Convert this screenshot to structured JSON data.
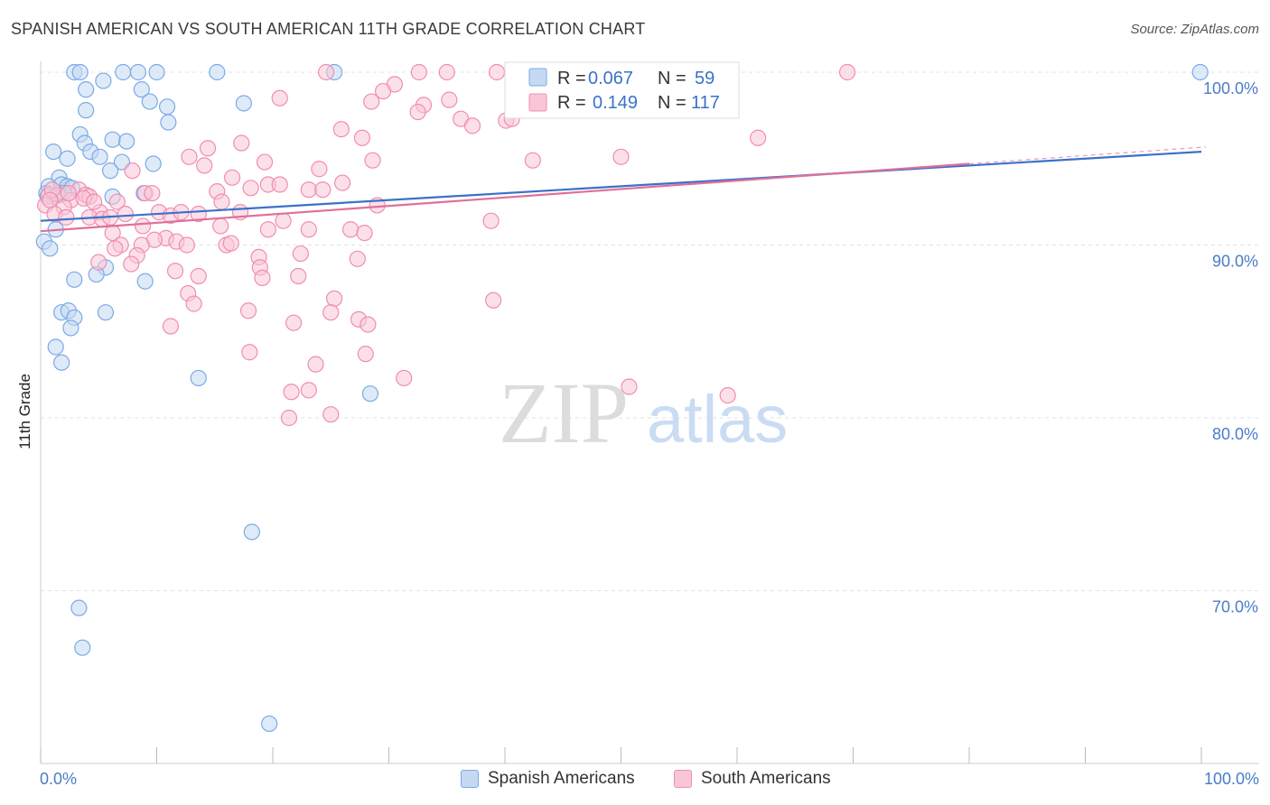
{
  "chart_data": {
    "type": "scatter",
    "title": "SPANISH AMERICAN VS SOUTH AMERICAN 11TH GRADE CORRELATION CHART",
    "source": "Source: ZipAtlas.com",
    "ylabel": "11th Grade",
    "xlabel": "",
    "xlim": [
      0,
      100
    ],
    "ylim": [
      61,
      101
    ],
    "x_tick_labels": {
      "left": "0.0%",
      "right": "100.0%"
    },
    "y_ticks": [
      {
        "value": 100,
        "label": "100.0%"
      },
      {
        "value": 90,
        "label": "90.0%"
      },
      {
        "value": 80,
        "label": "80.0%"
      },
      {
        "value": 70,
        "label": "70.0%"
      }
    ],
    "watermark": {
      "zip": "ZIP",
      "atlas": "atlas"
    },
    "stats": [
      {
        "r_label": "R =",
        "r_value": "0.067",
        "n_label": "N =",
        "n_value": "59"
      },
      {
        "r_label": "R =",
        "r_value": "0.149",
        "n_label": "N =",
        "n_value": "117"
      }
    ],
    "series": [
      {
        "name": "Spanish Americans",
        "color": "#7aaae6",
        "fill": "#c5d9f3",
        "line_color": "#3a72c9",
        "trend": {
          "x0": 0,
          "y0": 91.4,
          "x1": 100,
          "y1": 95.4
        },
        "points": [
          [
            2.9,
            100
          ],
          [
            3.4,
            100
          ],
          [
            7.1,
            100
          ],
          [
            8.4,
            100
          ],
          [
            10.0,
            100
          ],
          [
            15.2,
            100
          ],
          [
            25.3,
            100
          ],
          [
            99.9,
            100
          ],
          [
            3.9,
            99.0
          ],
          [
            5.4,
            99.5
          ],
          [
            8.7,
            99.0
          ],
          [
            9.4,
            98.3
          ],
          [
            3.9,
            97.8
          ],
          [
            10.9,
            98.0
          ],
          [
            17.5,
            98.2
          ],
          [
            11.0,
            97.1
          ],
          [
            3.4,
            96.4
          ],
          [
            3.8,
            95.9
          ],
          [
            6.2,
            96.1
          ],
          [
            7.4,
            96.0
          ],
          [
            1.1,
            95.4
          ],
          [
            2.3,
            95.0
          ],
          [
            4.3,
            95.4
          ],
          [
            5.1,
            95.1
          ],
          [
            7.0,
            94.8
          ],
          [
            9.7,
            94.7
          ],
          [
            6.0,
            94.3
          ],
          [
            1.6,
            93.9
          ],
          [
            0.7,
            93.4
          ],
          [
            1.8,
            93.5
          ],
          [
            2.3,
            93.4
          ],
          [
            2.7,
            93.3
          ],
          [
            0.5,
            93.0
          ],
          [
            1.2,
            92.8
          ],
          [
            1.7,
            92.9
          ],
          [
            2.0,
            93.0
          ],
          [
            0.6,
            92.8
          ],
          [
            6.2,
            92.8
          ],
          [
            8.9,
            93.0
          ],
          [
            0.3,
            90.2
          ],
          [
            1.3,
            90.9
          ],
          [
            0.8,
            89.8
          ],
          [
            5.6,
            88.7
          ],
          [
            2.9,
            88.0
          ],
          [
            4.8,
            88.3
          ],
          [
            9.0,
            87.9
          ],
          [
            1.8,
            86.1
          ],
          [
            2.4,
            86.2
          ],
          [
            2.9,
            85.8
          ],
          [
            5.6,
            86.1
          ],
          [
            2.6,
            85.2
          ],
          [
            1.3,
            84.1
          ],
          [
            1.8,
            83.2
          ],
          [
            13.6,
            82.3
          ],
          [
            28.4,
            81.4
          ],
          [
            18.2,
            73.4
          ],
          [
            3.3,
            69.0
          ],
          [
            3.6,
            66.7
          ],
          [
            19.7,
            62.3
          ]
        ]
      },
      {
        "name": "South Americans",
        "color": "#f08db0",
        "fill": "#f9c6d7",
        "line_color": "#e0709a",
        "trend": {
          "x0": 0,
          "y0": 90.8,
          "x1": 80,
          "y1": 94.7
        },
        "points": [
          [
            24.6,
            100
          ],
          [
            32.6,
            100
          ],
          [
            35.0,
            100
          ],
          [
            39.3,
            100
          ],
          [
            69.5,
            100
          ],
          [
            30.5,
            99.3
          ],
          [
            29.5,
            98.9
          ],
          [
            20.6,
            98.5
          ],
          [
            35.2,
            98.4
          ],
          [
            28.5,
            98.3
          ],
          [
            33.0,
            98.1
          ],
          [
            32.5,
            97.7
          ],
          [
            40.1,
            97.2
          ],
          [
            36.2,
            97.3
          ],
          [
            37.2,
            96.9
          ],
          [
            25.9,
            96.7
          ],
          [
            27.7,
            96.2
          ],
          [
            61.8,
            96.2
          ],
          [
            17.3,
            95.9
          ],
          [
            14.4,
            95.6
          ],
          [
            12.8,
            95.1
          ],
          [
            19.3,
            94.8
          ],
          [
            28.6,
            94.9
          ],
          [
            42.4,
            94.9
          ],
          [
            50.0,
            95.1
          ],
          [
            14.1,
            94.6
          ],
          [
            24.0,
            94.4
          ],
          [
            7.9,
            94.3
          ],
          [
            16.5,
            93.9
          ],
          [
            19.6,
            93.5
          ],
          [
            20.6,
            93.5
          ],
          [
            23.1,
            93.2
          ],
          [
            24.3,
            93.2
          ],
          [
            26.0,
            93.6
          ],
          [
            15.2,
            93.1
          ],
          [
            18.1,
            93.3
          ],
          [
            9.0,
            93.0
          ],
          [
            9.6,
            93.0
          ],
          [
            3.3,
            93.2
          ],
          [
            0.7,
            92.9
          ],
          [
            1.5,
            92.9
          ],
          [
            2.6,
            92.6
          ],
          [
            3.9,
            92.9
          ],
          [
            4.2,
            92.8
          ],
          [
            6.6,
            92.5
          ],
          [
            15.6,
            92.5
          ],
          [
            29.0,
            92.3
          ],
          [
            0.4,
            92.3
          ],
          [
            2.0,
            92.2
          ],
          [
            1.2,
            91.8
          ],
          [
            5.1,
            91.9
          ],
          [
            7.3,
            91.8
          ],
          [
            10.2,
            91.9
          ],
          [
            11.2,
            91.7
          ],
          [
            12.1,
            91.9
          ],
          [
            13.6,
            91.8
          ],
          [
            17.2,
            91.9
          ],
          [
            2.2,
            91.6
          ],
          [
            4.2,
            91.6
          ],
          [
            5.3,
            91.5
          ],
          [
            20.9,
            91.4
          ],
          [
            15.5,
            91.1
          ],
          [
            19.6,
            90.9
          ],
          [
            23.1,
            90.9
          ],
          [
            26.7,
            90.9
          ],
          [
            27.9,
            90.7
          ],
          [
            38.8,
            91.4
          ],
          [
            6.2,
            90.7
          ],
          [
            10.8,
            90.4
          ],
          [
            9.8,
            90.3
          ],
          [
            11.7,
            90.2
          ],
          [
            12.6,
            90.0
          ],
          [
            16.0,
            90.0
          ],
          [
            16.4,
            90.1
          ],
          [
            6.9,
            90.0
          ],
          [
            8.7,
            90.0
          ],
          [
            6.4,
            89.8
          ],
          [
            22.4,
            89.5
          ],
          [
            8.3,
            89.4
          ],
          [
            18.8,
            89.3
          ],
          [
            27.3,
            89.2
          ],
          [
            5.0,
            89.0
          ],
          [
            7.8,
            88.9
          ],
          [
            18.9,
            88.7
          ],
          [
            11.6,
            88.5
          ],
          [
            13.6,
            88.2
          ],
          [
            19.1,
            88.1
          ],
          [
            22.2,
            88.2
          ],
          [
            12.7,
            87.2
          ],
          [
            25.3,
            86.9
          ],
          [
            13.2,
            86.6
          ],
          [
            39.0,
            86.8
          ],
          [
            17.9,
            86.2
          ],
          [
            25.0,
            86.1
          ],
          [
            27.4,
            85.7
          ],
          [
            21.8,
            85.5
          ],
          [
            28.2,
            85.4
          ],
          [
            11.2,
            85.3
          ],
          [
            18.0,
            83.8
          ],
          [
            28.0,
            83.7
          ],
          [
            23.7,
            83.1
          ],
          [
            31.3,
            82.3
          ],
          [
            50.7,
            81.8
          ],
          [
            59.2,
            81.3
          ],
          [
            21.6,
            81.5
          ],
          [
            23.1,
            81.6
          ],
          [
            25.0,
            80.2
          ],
          [
            21.4,
            80.0
          ],
          [
            41.1,
            98.5
          ],
          [
            40.6,
            97.3
          ],
          [
            1.0,
            93.2
          ],
          [
            0.8,
            92.6
          ],
          [
            2.4,
            93.0
          ],
          [
            3.7,
            92.7
          ],
          [
            4.6,
            92.5
          ],
          [
            6.0,
            91.6
          ],
          [
            8.8,
            91.1
          ]
        ]
      }
    ]
  }
}
